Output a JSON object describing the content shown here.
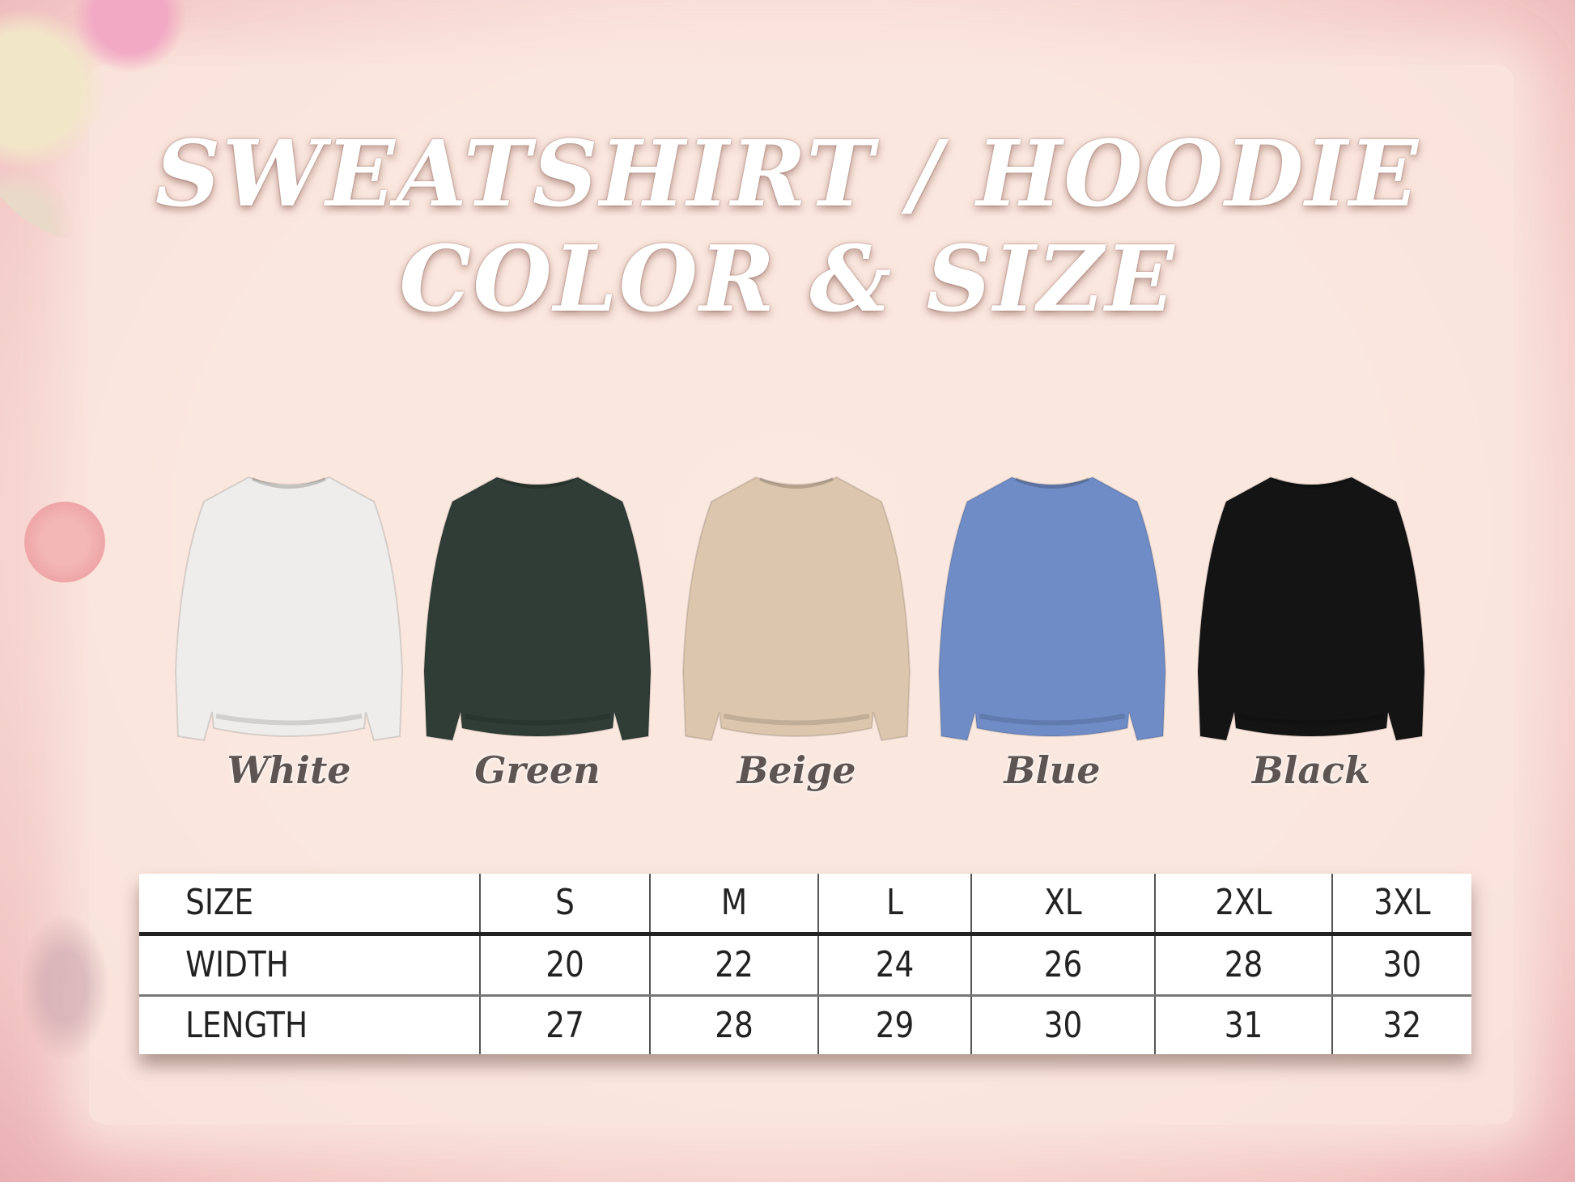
{
  "title": {
    "line1": "SWEATSHIRT / HOODIE",
    "line2": "COLOR & SIZE"
  },
  "colors": [
    {
      "name": "White",
      "hex": "#eeedeb"
    },
    {
      "name": "Green",
      "hex": "#2f3d36"
    },
    {
      "name": "Beige",
      "hex": "#dcc6ad"
    },
    {
      "name": "Blue",
      "hex": "#6f8cc6"
    },
    {
      "name": "Black",
      "hex": "#151414"
    }
  ],
  "size_table": {
    "header": [
      "SIZE",
      "S",
      "M",
      "L",
      "XL",
      "2XL",
      "3XL"
    ],
    "rows": [
      [
        "WIDTH",
        "20",
        "22",
        "24",
        "26",
        "28",
        "30"
      ],
      [
        "LENGTH",
        "27",
        "28",
        "29",
        "30",
        "31",
        "32"
      ]
    ]
  }
}
